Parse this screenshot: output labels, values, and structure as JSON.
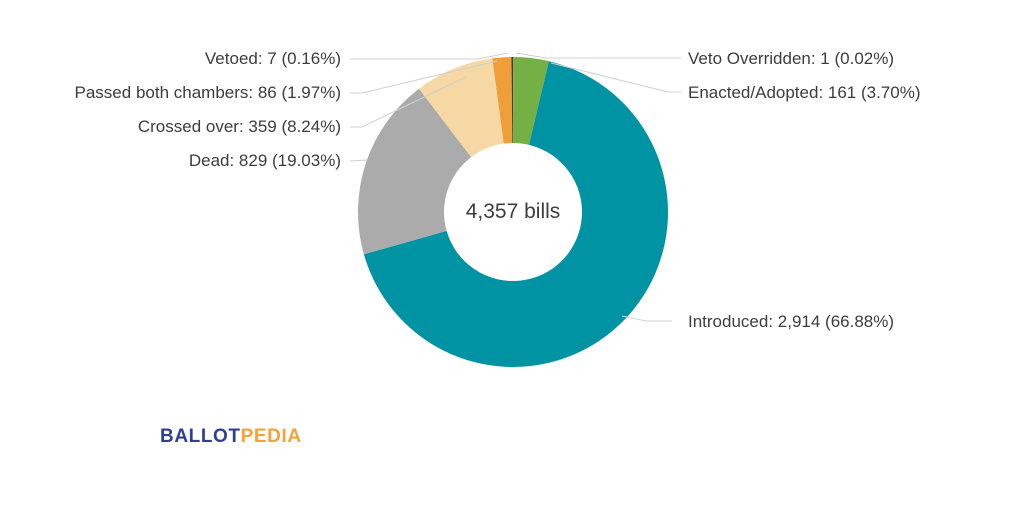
{
  "chart_data": {
    "type": "pie",
    "subtype": "donut",
    "title": "",
    "center_label": "4,357 bills",
    "total": 4357,
    "unit": "bills",
    "start_angle_deg": 0,
    "direction": "clockwise",
    "inner_radius_ratio": 0.445,
    "legend_position": "none (callout labels with leader lines around chart)",
    "slices": [
      {
        "key": "veto_overridden",
        "name": "Veto Overridden",
        "value": 1,
        "pct": 0.02,
        "label": "Veto Overridden: 1 (0.02%)",
        "color": "#2b2b2b"
      },
      {
        "key": "enacted",
        "name": "Enacted/Adopted",
        "value": 161,
        "pct": 3.7,
        "label": "Enacted/Adopted: 161 (3.70%)",
        "color": "#74b044"
      },
      {
        "key": "introduced",
        "name": "Introduced",
        "value": 2914,
        "pct": 66.88,
        "label": "Introduced: 2,914 (66.88%)",
        "color": "#0093a3"
      },
      {
        "key": "dead",
        "name": "Dead",
        "value": 829,
        "pct": 19.03,
        "label": "Dead: 829 (19.03%)",
        "color": "#ababab"
      },
      {
        "key": "crossed_over",
        "name": "Crossed over",
        "value": 359,
        "pct": 8.24,
        "label": "Crossed over: 359 (8.24%)",
        "color": "#f6d8a5"
      },
      {
        "key": "passed_both",
        "name": "Passed both chambers",
        "value": 86,
        "pct": 1.97,
        "label": "Passed both chambers: 86 (1.97%)",
        "color": "#f09e39"
      },
      {
        "key": "vetoed",
        "name": "Vetoed",
        "value": 7,
        "pct": 0.16,
        "label": "Vetoed: 7 (0.16%)",
        "color": "#404040"
      }
    ],
    "colors": {
      "label_text": "#3d3d3d",
      "connector_line": "#d0d0d0",
      "background": "#ffffff"
    }
  },
  "logo": {
    "part1": "BALLOT",
    "part2": "PEDIA",
    "color1": "#2f3f94",
    "color2": "#f7a239"
  }
}
